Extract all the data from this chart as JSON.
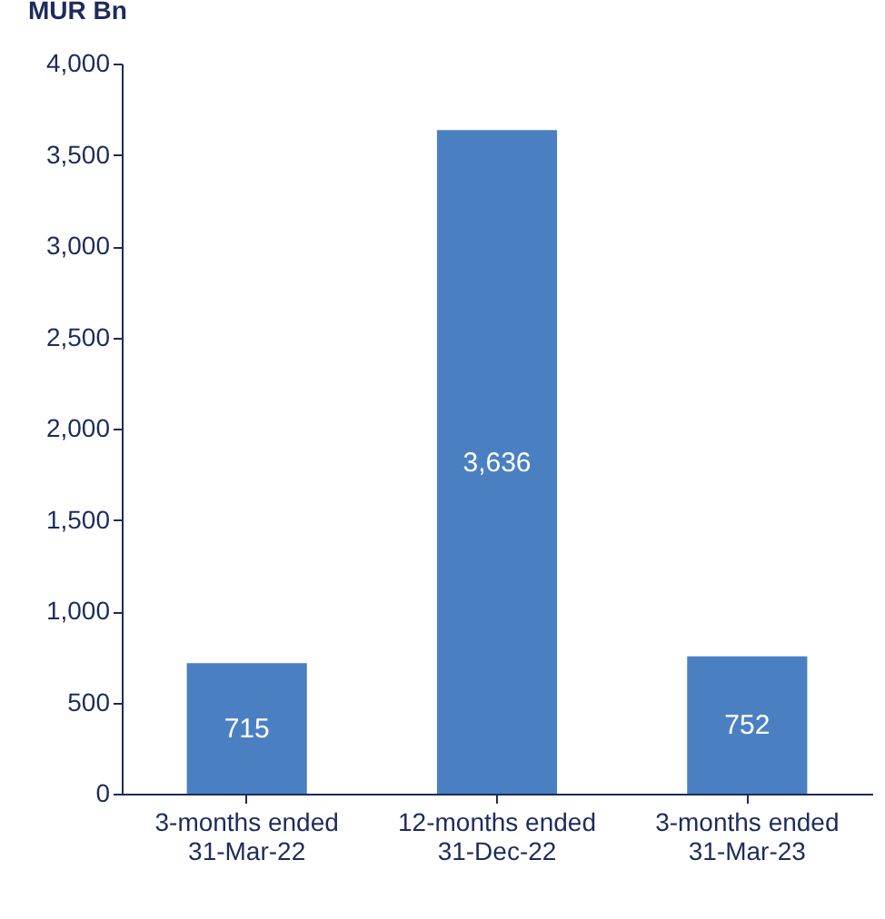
{
  "chart_data": {
    "type": "bar",
    "ylabel": "MUR Bn",
    "categories": [
      "3-months ended 31-Mar-22",
      "12-months ended 31-Dec-22",
      "3-months ended 31-Mar-23"
    ],
    "values": [
      715,
      3636,
      752
    ],
    "color": "#4a80c2",
    "ylim": [
      0,
      4000
    ],
    "yticks": [
      0,
      500,
      {
        "value": 1000,
        "label": "1,000"
      },
      {
        "value": 1500,
        "label": "1,500"
      },
      {
        "value": 2000,
        "label": "2,000"
      },
      {
        "value": 2500,
        "label": "2,500"
      },
      {
        "value": 3000,
        "label": "3,000"
      },
      {
        "value": 3500,
        "label": "3,500"
      },
      {
        "value": 4000,
        "label": "4,000"
      }
    ],
    "grid": false,
    "value_labels": [
      "715",
      "3,636",
      "752"
    ]
  }
}
